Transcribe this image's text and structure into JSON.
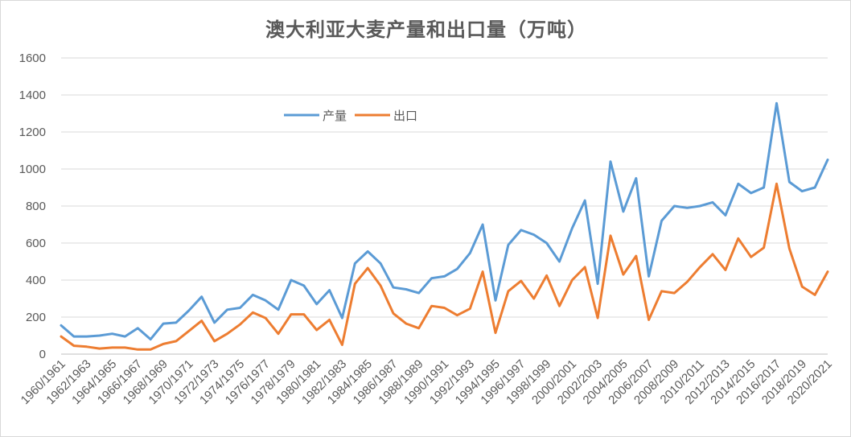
{
  "chart_data": {
    "type": "line",
    "title": "澳大利亚大麦产量和出口量（万吨）",
    "xlabel": "",
    "ylabel": "",
    "ylim": [
      0,
      1600
    ],
    "yticks": [
      0,
      200,
      400,
      600,
      800,
      1000,
      1200,
      1400,
      1600
    ],
    "grid": "horizontal",
    "legend_position": "top-left inside",
    "x": [
      "1960/1961",
      "1961/1962",
      "1962/1963",
      "1963/1964",
      "1964/1965",
      "1965/1966",
      "1966/1967",
      "1967/1968",
      "1968/1969",
      "1969/1970",
      "1970/1971",
      "1971/1972",
      "1972/1973",
      "1973/1974",
      "1974/1975",
      "1975/1976",
      "1976/1977",
      "1977/1978",
      "1978/1979",
      "1979/1980",
      "1980/1981",
      "1981/1982",
      "1982/1983",
      "1983/1984",
      "1984/1985",
      "1985/1986",
      "1986/1987",
      "1987/1988",
      "1988/1989",
      "1989/1990",
      "1990/1991",
      "1991/1992",
      "1992/1993",
      "1993/1994",
      "1994/1995",
      "1995/1996",
      "1996/1997",
      "1997/1998",
      "1998/1999",
      "1999/2000",
      "2000/2001",
      "2001/2002",
      "2002/2003",
      "2003/2004",
      "2004/2005",
      "2005/2006",
      "2006/2007",
      "2007/2008",
      "2008/2009",
      "2009/2010",
      "2010/2011",
      "2011/2012",
      "2012/2013",
      "2013/2014",
      "2014/2015",
      "2015/2016",
      "2016/2017",
      "2017/2018",
      "2018/2019",
      "2019/2020",
      "2020/2021"
    ],
    "x_tick_labels": [
      "1960/1961",
      "1962/1963",
      "1964/1965",
      "1966/1967",
      "1968/1969",
      "1970/1971",
      "1972/1973",
      "1974/1975",
      "1976/1977",
      "1978/1979",
      "1980/1981",
      "1982/1983",
      "1984/1985",
      "1986/1987",
      "1988/1989",
      "1990/1991",
      "1992/1993",
      "1994/1995",
      "1996/1997",
      "1998/1999",
      "2000/2001",
      "2002/2003",
      "2004/2005",
      "2006/2007",
      "2008/2009",
      "2010/2011",
      "2012/2013",
      "2014/2015",
      "2016/2017",
      "2018/2019",
      "2020/2021"
    ],
    "series": [
      {
        "name": "产量",
        "color": "#5B9BD5",
        "values": [
          155,
          95,
          95,
          100,
          110,
          95,
          140,
          80,
          165,
          170,
          235,
          310,
          170,
          240,
          250,
          320,
          290,
          240,
          400,
          370,
          270,
          345,
          195,
          490,
          555,
          490,
          360,
          350,
          330,
          410,
          420,
          460,
          545,
          700,
          290,
          590,
          670,
          645,
          600,
          500,
          680,
          830,
          380,
          1040,
          770,
          950,
          420,
          720,
          800,
          790,
          800,
          820,
          750,
          920,
          870,
          900,
          1355,
          930,
          880,
          900,
          1050
        ]
      },
      {
        "name": "出口",
        "color": "#ED7D31",
        "values": [
          95,
          45,
          40,
          30,
          35,
          35,
          25,
          25,
          55,
          70,
          125,
          180,
          70,
          110,
          160,
          225,
          195,
          110,
          215,
          215,
          130,
          185,
          50,
          380,
          465,
          370,
          220,
          165,
          140,
          260,
          250,
          210,
          245,
          445,
          115,
          340,
          395,
          300,
          425,
          260,
          400,
          470,
          195,
          640,
          430,
          530,
          185,
          340,
          330,
          390,
          470,
          540,
          455,
          625,
          525,
          575,
          920,
          570,
          365,
          320,
          445
        ]
      }
    ]
  }
}
